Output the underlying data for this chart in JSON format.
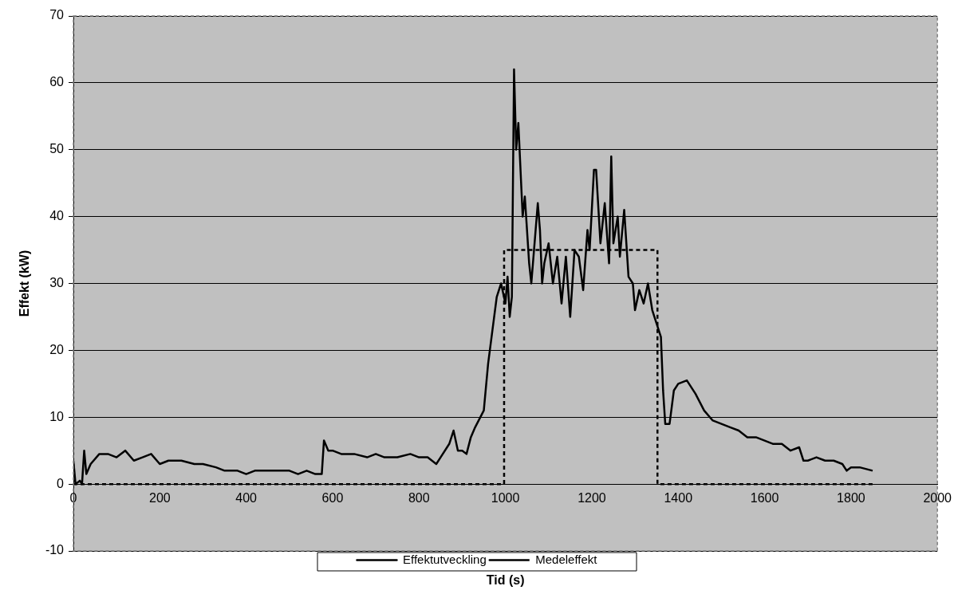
{
  "chart_data": {
    "type": "line",
    "xlabel": "Tid (s)",
    "ylabel": "Effekt (kW)",
    "xlim": [
      0,
      2000
    ],
    "xticks": [
      0,
      200,
      400,
      600,
      800,
      1000,
      1200,
      1400,
      1600,
      1800,
      2000
    ],
    "ylim": [
      -10,
      70
    ],
    "yticks": [
      -10,
      0,
      10,
      20,
      30,
      40,
      50,
      60,
      70
    ],
    "grid": "y",
    "legend": "bottom",
    "marker": "none",
    "series": [
      {
        "name": "Effektutveckling",
        "color": "#000000",
        "line_style": "solid",
        "x": [
          0,
          5,
          15,
          20,
          25,
          30,
          40,
          60,
          80,
          100,
          120,
          140,
          160,
          180,
          200,
          220,
          250,
          280,
          300,
          330,
          350,
          380,
          400,
          420,
          450,
          480,
          500,
          520,
          540,
          560,
          575,
          580,
          590,
          600,
          620,
          650,
          680,
          700,
          720,
          750,
          780,
          800,
          820,
          840,
          850,
          870,
          880,
          890,
          900,
          910,
          920,
          930,
          950,
          960,
          970,
          980,
          990,
          1000,
          1005,
          1010,
          1015,
          1020,
          1025,
          1030,
          1040,
          1045,
          1055,
          1060,
          1070,
          1075,
          1080,
          1085,
          1090,
          1100,
          1110,
          1120,
          1130,
          1140,
          1150,
          1160,
          1170,
          1180,
          1190,
          1195,
          1205,
          1210,
          1220,
          1230,
          1240,
          1245,
          1250,
          1260,
          1265,
          1275,
          1285,
          1295,
          1300,
          1310,
          1320,
          1330,
          1340,
          1350,
          1360,
          1365,
          1370,
          1380,
          1390,
          1400,
          1420,
          1440,
          1460,
          1480,
          1500,
          1520,
          1540,
          1560,
          1580,
          1600,
          1620,
          1640,
          1660,
          1680,
          1690,
          1700,
          1720,
          1740,
          1760,
          1780,
          1790,
          1800,
          1820,
          1850
        ],
        "values": [
          3.5,
          0,
          0.5,
          0,
          5,
          1.5,
          3,
          4.5,
          4.5,
          4,
          5,
          3.5,
          4,
          4.5,
          3,
          3.5,
          3.5,
          3,
          3,
          2.5,
          2,
          2,
          1.5,
          2,
          2,
          2,
          2,
          1.5,
          2,
          1.5,
          1.5,
          6.5,
          5,
          5,
          4.5,
          4.5,
          4,
          4.5,
          4,
          4,
          4.5,
          4,
          4,
          3,
          4,
          6,
          8,
          5,
          5,
          4.5,
          7,
          8.5,
          11,
          18,
          23,
          28,
          30,
          27,
          31,
          25,
          28,
          62,
          50,
          54,
          40,
          43,
          33,
          30,
          38,
          42,
          38,
          30,
          33,
          36,
          30,
          34,
          27,
          34,
          25,
          35,
          34,
          29,
          38,
          35,
          47,
          47,
          36,
          42,
          33,
          49,
          36,
          40,
          34,
          41,
          31,
          30,
          26,
          29,
          27,
          30,
          26,
          24,
          22,
          14,
          9,
          9,
          14,
          15,
          15.5,
          13.5,
          11,
          9.5,
          9,
          8.5,
          8,
          7,
          7,
          6.5,
          6,
          6,
          5,
          5.5,
          3.5,
          3.5,
          4,
          3.5,
          3.5,
          3,
          2,
          2.5,
          2.5,
          2
        ]
      },
      {
        "name": "Medeleffekt",
        "color": "#000000",
        "line_style": "dashed",
        "x": [
          0,
          997,
          997,
          1352,
          1352,
          1853
        ],
        "values": [
          0,
          0,
          35,
          35,
          0,
          0
        ]
      }
    ]
  }
}
